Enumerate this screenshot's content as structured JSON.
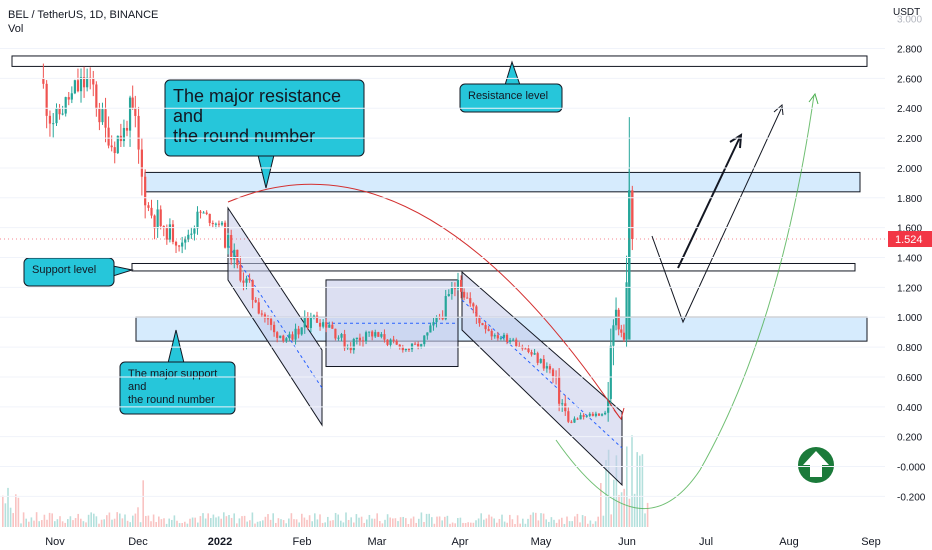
{
  "header": {
    "title": "BEL / TetherUS, 1D, BINANCE",
    "volume_label": "Vol"
  },
  "price_axis": {
    "currency": "USDT",
    "current_price": "1.524",
    "current_price_color": "#f23645",
    "ticks": [
      "2.800",
      "2.600",
      "2.400",
      "2.200",
      "2.000",
      "1.800",
      "1.600",
      "1.400",
      "1.200",
      "1.000",
      "0.800",
      "0.600",
      "0.400",
      "0.200",
      "-0.000",
      "-0.200"
    ],
    "tick_values": [
      2.8,
      2.6,
      2.4,
      2.2,
      2.0,
      1.8,
      1.6,
      1.4,
      1.2,
      1.0,
      0.8,
      0.6,
      0.4,
      0.2,
      0.0,
      -0.2
    ],
    "top_partial_tick": "3.000"
  },
  "time_axis": {
    "labels": [
      "Nov",
      "Dec",
      "2022",
      "Feb",
      "Mar",
      "Apr",
      "May",
      "Jun",
      "Jul",
      "Aug",
      "Sep"
    ]
  },
  "annotations": {
    "resistance_callout": "The major resistance\nand\nthe round number",
    "resistance_level": "Resistance level",
    "support_level": "Support level",
    "support_callout": "The major support\nand\nthe round number"
  },
  "colors": {
    "up": "#26a69a",
    "down": "#ef5350",
    "callout_fill": "#26c6da",
    "zone_fill": "#bbdefb",
    "box_fill": "#c5cae9",
    "arc": "#d32f2f",
    "green_curve": "#4caf50"
  },
  "chart_data": {
    "type": "candlestick",
    "symbol": "BEL / TetherUS",
    "interval": "1D",
    "exchange": "BINANCE",
    "ylim": [
      -0.24,
      3.0
    ],
    "last_price": 1.524,
    "levels": {
      "resistance_level": [
        2.68,
        2.75
      ],
      "major_resistance_zone": [
        1.84,
        1.97
      ],
      "support_level": [
        1.31,
        1.36
      ],
      "major_support_zone": [
        0.84,
        1.0
      ]
    },
    "candles": [
      {
        "date": "2021-10-27",
        "open": 2.6,
        "high": 2.78,
        "low": 2.05,
        "close": 2.3
      },
      {
        "date": "2021-11-01",
        "open": 2.3,
        "high": 2.62,
        "low": 2.2,
        "close": 2.5
      },
      {
        "date": "2021-11-08",
        "open": 2.5,
        "high": 2.95,
        "low": 2.35,
        "close": 2.6
      },
      {
        "date": "2021-11-15",
        "open": 2.6,
        "high": 2.7,
        "low": 2.0,
        "close": 2.15
      },
      {
        "date": "2021-11-22",
        "open": 2.15,
        "high": 2.45,
        "low": 1.9,
        "close": 2.25
      },
      {
        "date": "2021-11-29",
        "open": 2.25,
        "high": 2.95,
        "low": 2.1,
        "close": 2.4
      },
      {
        "date": "2021-12-01",
        "open": 2.4,
        "high": 2.5,
        "low": 1.6,
        "close": 1.75
      },
      {
        "date": "2021-12-06",
        "open": 1.75,
        "high": 1.95,
        "low": 1.45,
        "close": 1.6
      },
      {
        "date": "2021-12-13",
        "open": 1.6,
        "high": 1.75,
        "low": 1.38,
        "close": 1.5
      },
      {
        "date": "2021-12-20",
        "open": 1.5,
        "high": 1.8,
        "low": 1.45,
        "close": 1.7
      },
      {
        "date": "2021-12-27",
        "open": 1.7,
        "high": 1.76,
        "low": 1.55,
        "close": 1.62
      },
      {
        "date": "2022-01-03",
        "open": 1.62,
        "high": 1.7,
        "low": 1.3,
        "close": 1.35
      },
      {
        "date": "2022-01-10",
        "open": 1.35,
        "high": 1.45,
        "low": 1.05,
        "close": 1.1
      },
      {
        "date": "2022-01-17",
        "open": 1.1,
        "high": 1.15,
        "low": 0.85,
        "close": 0.9
      },
      {
        "date": "2022-01-24",
        "open": 0.9,
        "high": 0.98,
        "low": 0.78,
        "close": 0.85
      },
      {
        "date": "2022-01-31",
        "open": 0.85,
        "high": 1.1,
        "low": 0.8,
        "close": 1.0
      },
      {
        "date": "2022-02-07",
        "open": 1.0,
        "high": 1.12,
        "low": 0.9,
        "close": 0.95
      },
      {
        "date": "2022-02-14",
        "open": 0.95,
        "high": 1.0,
        "low": 0.75,
        "close": 0.8
      },
      {
        "date": "2022-02-21",
        "open": 0.8,
        "high": 0.95,
        "low": 0.68,
        "close": 0.9
      },
      {
        "date": "2022-02-28",
        "open": 0.9,
        "high": 1.0,
        "low": 0.78,
        "close": 0.85
      },
      {
        "date": "2022-03-07",
        "open": 0.85,
        "high": 0.9,
        "low": 0.72,
        "close": 0.78
      },
      {
        "date": "2022-03-14",
        "open": 0.78,
        "high": 0.88,
        "low": 0.74,
        "close": 0.82
      },
      {
        "date": "2022-03-21",
        "open": 0.82,
        "high": 1.05,
        "low": 0.8,
        "close": 1.0
      },
      {
        "date": "2022-03-28",
        "open": 1.0,
        "high": 1.32,
        "low": 0.98,
        "close": 1.25
      },
      {
        "date": "2022-04-04",
        "open": 1.25,
        "high": 1.28,
        "low": 0.95,
        "close": 1.0
      },
      {
        "date": "2022-04-11",
        "open": 1.0,
        "high": 1.02,
        "low": 0.82,
        "close": 0.88
      },
      {
        "date": "2022-04-18",
        "open": 0.88,
        "high": 0.95,
        "low": 0.8,
        "close": 0.85
      },
      {
        "date": "2022-04-25",
        "open": 0.85,
        "high": 0.9,
        "low": 0.72,
        "close": 0.75
      },
      {
        "date": "2022-05-02",
        "open": 0.75,
        "high": 0.8,
        "low": 0.6,
        "close": 0.65
      },
      {
        "date": "2022-05-09",
        "open": 0.65,
        "high": 0.66,
        "low": 0.22,
        "close": 0.3
      },
      {
        "date": "2022-05-16",
        "open": 0.3,
        "high": 0.38,
        "low": 0.25,
        "close": 0.34
      },
      {
        "date": "2022-05-23",
        "open": 0.34,
        "high": 0.4,
        "low": 0.3,
        "close": 0.36
      },
      {
        "date": "2022-05-30",
        "open": 0.36,
        "high": 1.2,
        "low": 0.3,
        "close": 1.05
      },
      {
        "date": "2022-06-03",
        "open": 1.05,
        "high": 1.15,
        "low": 0.72,
        "close": 0.85
      },
      {
        "date": "2022-06-06",
        "open": 0.85,
        "high": 2.34,
        "low": 0.8,
        "close": 1.85
      },
      {
        "date": "2022-06-08",
        "open": 1.85,
        "high": 1.88,
        "low": 1.45,
        "close": 1.524
      }
    ]
  }
}
